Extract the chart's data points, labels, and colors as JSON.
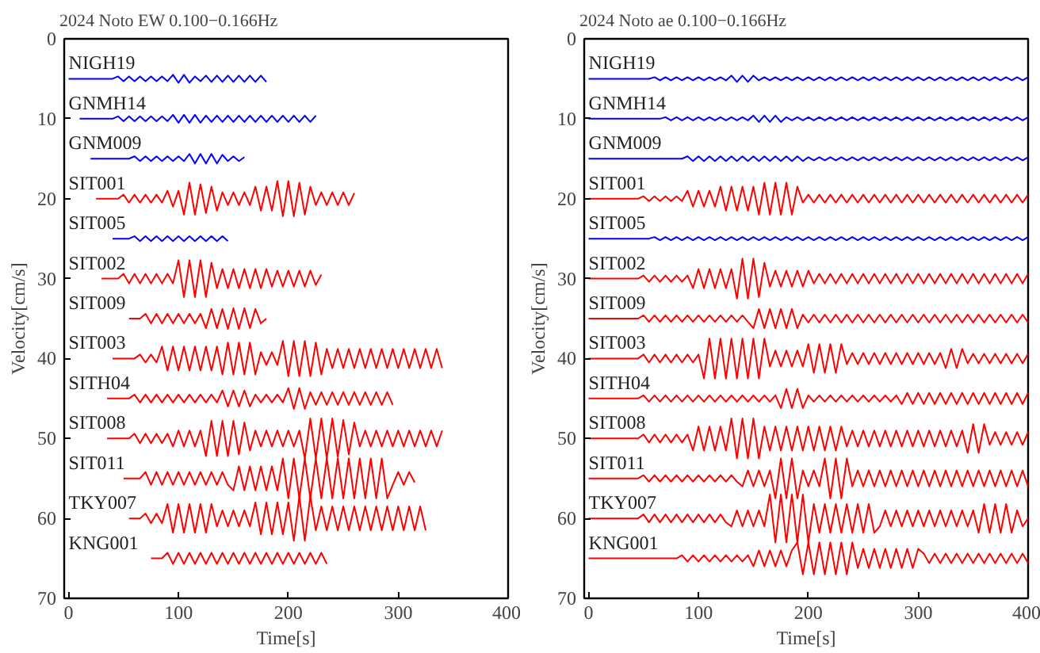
{
  "chart_data": [
    {
      "type": "line",
      "title": "2024 Noto EW 0.100−0.166Hz",
      "xlabel": "Time[s]",
      "ylabel": "Velocity[cm/s]",
      "xlim": [
        -4,
        400
      ],
      "ylim": [
        70,
        0
      ],
      "xticks": [
        0,
        100,
        200,
        300,
        400
      ],
      "yticks": [
        0,
        10,
        20,
        30,
        40,
        50,
        60,
        70
      ],
      "grid": false,
      "legend": false,
      "x": [
        0,
        5,
        10,
        15,
        20,
        25,
        30,
        35,
        40,
        45,
        50,
        55,
        60,
        65,
        70,
        75,
        80,
        85,
        90,
        95,
        100,
        105,
        110,
        115,
        120,
        125,
        130,
        135,
        140,
        145,
        150,
        155,
        160,
        165,
        170,
        175,
        180,
        185,
        190,
        195,
        200,
        205,
        210,
        215,
        220,
        225,
        230,
        235,
        240,
        245,
        250,
        255,
        260,
        265,
        270,
        275,
        280,
        285,
        290,
        295,
        300,
        305,
        310,
        315,
        320,
        325,
        330,
        335,
        340
      ],
      "series": [
        {
          "name": "NIGH19",
          "color": "#0000ff",
          "values": [
            5,
            5,
            5,
            5,
            5,
            5,
            5,
            5,
            5,
            4.7,
            5.3,
            4.7,
            5.3,
            4.7,
            5.3,
            4.7,
            5.3,
            4.7,
            5.3,
            4.5,
            5.5,
            4.5,
            5.5,
            4.7,
            5.3,
            4.6,
            5.4,
            4.6,
            5.4,
            4.6,
            5.4,
            4.6,
            5.4,
            4.6,
            5.4,
            4.6,
            5.4,
            null,
            null,
            null,
            null,
            null,
            null,
            null,
            null,
            null,
            null,
            null,
            null,
            null,
            null,
            null,
            null,
            null,
            null,
            null,
            null,
            null,
            null,
            null,
            null,
            null,
            null,
            null,
            null,
            null,
            null,
            null,
            null
          ]
        },
        {
          "name": "GNMH14",
          "color": "#0000ff",
          "values": [
            null,
            null,
            10,
            10,
            10,
            10,
            10,
            10,
            10,
            9.7,
            10.3,
            9.7,
            10.3,
            9.7,
            10.3,
            9.7,
            10.3,
            9.7,
            10.3,
            9.5,
            10.5,
            9.5,
            10.5,
            9.5,
            10.5,
            9.6,
            10.4,
            9.6,
            10.4,
            9.6,
            10.4,
            9.6,
            10.4,
            9.6,
            10.4,
            9.6,
            10.4,
            9.6,
            10.4,
            9.6,
            10.4,
            9.6,
            10.4,
            9.6,
            10.4,
            9.6,
            null,
            null,
            null,
            null,
            null,
            null,
            null,
            null,
            null,
            null,
            null,
            null,
            null,
            null,
            null,
            null,
            null,
            null,
            null,
            null,
            null,
            null,
            null
          ]
        },
        {
          "name": "GNM009",
          "color": "#0000ff",
          "values": [
            null,
            null,
            null,
            null,
            15,
            15,
            15,
            15,
            15,
            15,
            15,
            15,
            14.7,
            15.3,
            14.7,
            15.3,
            14.7,
            15.3,
            14.7,
            15.3,
            14.7,
            15.3,
            14.4,
            15.6,
            14.4,
            15.6,
            14.4,
            15.6,
            14.5,
            15.3,
            14.7,
            15.3,
            14.8,
            null,
            null,
            null,
            null,
            null,
            null,
            null,
            null,
            null,
            null,
            null,
            null,
            null,
            null,
            null,
            null,
            null,
            null,
            null,
            null,
            null,
            null,
            null,
            null,
            null,
            null,
            null,
            null,
            null,
            null,
            null,
            null,
            null,
            null,
            null,
            null
          ]
        },
        {
          "name": "SIT001",
          "color": "#ff0000",
          "values": [
            null,
            null,
            null,
            null,
            null,
            20,
            20,
            20,
            20,
            20,
            19.5,
            20.5,
            19.5,
            20.5,
            19.5,
            20.5,
            19.5,
            20.5,
            19,
            21,
            19,
            22,
            18,
            22,
            18.2,
            21.8,
            18.5,
            21.5,
            19.2,
            20.8,
            19.2,
            20.8,
            19.2,
            20.8,
            18.5,
            21.5,
            18.5,
            21.5,
            17.8,
            22.2,
            17.8,
            22.2,
            18,
            22,
            18.5,
            20.8,
            19.2,
            20.8,
            19.2,
            20.8,
            19.2,
            20.8,
            19.3,
            null,
            null,
            null,
            null,
            null,
            null,
            null,
            null,
            null,
            null,
            null,
            null,
            null,
            null,
            null,
            null
          ]
        },
        {
          "name": "SIT005",
          "color": "#0000ff",
          "values": [
            null,
            null,
            null,
            null,
            null,
            null,
            null,
            null,
            25,
            25,
            25,
            25,
            24.7,
            25.3,
            24.7,
            25.3,
            24.7,
            25.3,
            24.7,
            25.3,
            24.7,
            25.3,
            24.7,
            25.3,
            24.7,
            25.3,
            24.7,
            25.3,
            24.7,
            25.3,
            null,
            null,
            null,
            null,
            null,
            null,
            null,
            null,
            null,
            null,
            null,
            null,
            null,
            null,
            null,
            null,
            null,
            null,
            null,
            null,
            null,
            null,
            null,
            null,
            null,
            null,
            null,
            null,
            null,
            null,
            null,
            null,
            null,
            null,
            null,
            null,
            null,
            null,
            null
          ]
        },
        {
          "name": "SIT002",
          "color": "#ff0000",
          "values": [
            null,
            null,
            null,
            null,
            null,
            null,
            30,
            30,
            30,
            30,
            29.4,
            30.6,
            29.4,
            30.6,
            29.4,
            30.6,
            29.4,
            30.6,
            29.4,
            30.6,
            27.7,
            32.3,
            27.7,
            32.3,
            27.7,
            32.3,
            28,
            31.2,
            28.8,
            31.2,
            28.8,
            31.2,
            28.8,
            31.2,
            28.8,
            31.2,
            28.8,
            31,
            29,
            31,
            29,
            31,
            29,
            31,
            29,
            30.8,
            29.5,
            null,
            null,
            null,
            null,
            null,
            null,
            null,
            null,
            null,
            null,
            null,
            null,
            null,
            null,
            null,
            null,
            null,
            null,
            null,
            null,
            null,
            null
          ]
        },
        {
          "name": "SIT009",
          "color": "#ff0000",
          "values": [
            null,
            null,
            null,
            null,
            null,
            null,
            null,
            null,
            null,
            null,
            null,
            35,
            35,
            35,
            34.4,
            35.6,
            34.4,
            35.6,
            34.4,
            35.6,
            34.4,
            35.6,
            34.4,
            35.6,
            34.4,
            36.2,
            33.8,
            36.2,
            33.8,
            36.3,
            33.7,
            36.3,
            33.7,
            36.2,
            33.8,
            35.6,
            35,
            null,
            null,
            null,
            null,
            null,
            null,
            null,
            null,
            null,
            null,
            null,
            null,
            null,
            null,
            null,
            null,
            null,
            null,
            null,
            null,
            null,
            null,
            null,
            null,
            null,
            null,
            null,
            null,
            null,
            null,
            null,
            null
          ]
        },
        {
          "name": "SIT003",
          "color": "#ff0000",
          "values": [
            null,
            null,
            null,
            null,
            null,
            null,
            null,
            null,
            40,
            40,
            40,
            40,
            40,
            39.5,
            40.5,
            39.5,
            40.5,
            38.5,
            41.5,
            38.5,
            41.5,
            38.5,
            41.5,
            38.5,
            41.5,
            38.5,
            41.5,
            38.5,
            42,
            38,
            42,
            38,
            42,
            38,
            42,
            39.2,
            40.8,
            39.2,
            40.8,
            37.8,
            42.2,
            37.8,
            42.2,
            37.8,
            42.2,
            38,
            42,
            38.8,
            41.2,
            38.8,
            41.2,
            38.8,
            41.2,
            38.8,
            41.2,
            38.8,
            41.2,
            38.8,
            41.2,
            38.8,
            41.2,
            38.8,
            41.2,
            38.8,
            41.2,
            38.8,
            41.2,
            38.8,
            41.2
          ]
        },
        {
          "name": "SITH04",
          "color": "#ff0000",
          "values": [
            null,
            null,
            null,
            null,
            null,
            null,
            null,
            45,
            45,
            45,
            45,
            45,
            44.5,
            45.5,
            44.5,
            45.5,
            44.5,
            45.5,
            44.5,
            45.5,
            44.5,
            45.5,
            44.5,
            45.5,
            44.5,
            45.5,
            44.5,
            45.5,
            44,
            46,
            44,
            46,
            44,
            46,
            44.5,
            45.5,
            44.5,
            45.5,
            44.5,
            45.5,
            43.7,
            46.3,
            43.7,
            46.3,
            44.2,
            45.8,
            44.2,
            45.8,
            44.2,
            45.8,
            44.2,
            45.8,
            44.2,
            45.8,
            44.2,
            45.8,
            44.2,
            45.8,
            44.2,
            45.8,
            null,
            null,
            null,
            null,
            null,
            null,
            null,
            null,
            null
          ]
        },
        {
          "name": "SIT008",
          "color": "#ff0000",
          "values": [
            null,
            null,
            null,
            null,
            null,
            null,
            null,
            50,
            50,
            50,
            50,
            50,
            49.4,
            50.6,
            49.4,
            50.6,
            49.4,
            50.6,
            49.4,
            51,
            49,
            51,
            49,
            51,
            49,
            52.2,
            47.8,
            52.2,
            47.8,
            52.2,
            47.8,
            52,
            48,
            51.5,
            49,
            51,
            49,
            51,
            49,
            51,
            49,
            51,
            49,
            52.5,
            47.5,
            52.5,
            47.5,
            52.5,
            47.5,
            52.3,
            47.7,
            52,
            48,
            51,
            49,
            51,
            49,
            51,
            49,
            51,
            49,
            51,
            49,
            51,
            49,
            51,
            49,
            51,
            49
          ]
        },
        {
          "name": "SIT011",
          "color": "#ff0000",
          "values": [
            null,
            null,
            null,
            null,
            null,
            null,
            null,
            null,
            null,
            null,
            55,
            55,
            55,
            55,
            54.2,
            55.8,
            54.2,
            55.8,
            54.2,
            55.8,
            54.2,
            55.8,
            54.2,
            55.8,
            54.2,
            55.8,
            54.2,
            55.8,
            54.2,
            55.8,
            56.5,
            53.5,
            56.5,
            53.5,
            56.5,
            53.5,
            56.5,
            53.5,
            56.5,
            52.5,
            57.5,
            52.5,
            57.5,
            52.5,
            57.5,
            52.5,
            57.5,
            52.5,
            57.5,
            52.5,
            57.5,
            52.5,
            57.5,
            52.5,
            57.5,
            52.5,
            57.5,
            52.5,
            57.5,
            55.8,
            54.2,
            55.8,
            54.2,
            55.5,
            null,
            null,
            null,
            null,
            null
          ]
        },
        {
          "name": "TKY007",
          "color": "#ff0000",
          "values": [
            null,
            null,
            null,
            null,
            null,
            null,
            null,
            null,
            null,
            null,
            null,
            60,
            60,
            60,
            59.4,
            60.6,
            59.4,
            60.6,
            58.2,
            61.8,
            58.2,
            61.8,
            58.2,
            61.8,
            58.2,
            61.8,
            58.2,
            61,
            59,
            61,
            59,
            61,
            59,
            61,
            58,
            62,
            58,
            62,
            58,
            62,
            58,
            62.8,
            57.2,
            62.8,
            57.2,
            61.5,
            58.5,
            61.5,
            58.5,
            61.5,
            58.5,
            61.5,
            58.5,
            61.5,
            58.5,
            61.5,
            58.5,
            61.5,
            58.5,
            61.5,
            58.5,
            61.5,
            58.5,
            61.5,
            58.5,
            61.5,
            null,
            null,
            null
          ]
        },
        {
          "name": "KNG001",
          "color": "#ff0000",
          "values": [
            null,
            null,
            null,
            null,
            null,
            null,
            null,
            null,
            null,
            null,
            null,
            null,
            null,
            null,
            null,
            65,
            65,
            65,
            64.3,
            65.7,
            64.3,
            65.7,
            64.3,
            65.7,
            64.3,
            65.7,
            64.3,
            65.7,
            64.3,
            65.7,
            64.3,
            65.7,
            64.3,
            65.7,
            64.3,
            65.7,
            64.3,
            65.7,
            64.3,
            65.7,
            64.3,
            65.7,
            64.3,
            65.7,
            64.3,
            65.7,
            64.3,
            65.7,
            null,
            null,
            null,
            null,
            null,
            null,
            null,
            null,
            null,
            null,
            null,
            null,
            null,
            null,
            null,
            null,
            null,
            null,
            null,
            null,
            null
          ]
        }
      ]
    },
    {
      "type": "line",
      "title": "2024 Noto ae 0.100−0.166Hz",
      "xlabel": "Time[s]",
      "ylabel": "Velocity[cm/s]",
      "xlim": [
        -4,
        400
      ],
      "ylim": [
        70,
        0
      ],
      "xticks": [
        0,
        100,
        200,
        300,
        400
      ],
      "yticks": [
        0,
        10,
        20,
        30,
        40,
        50,
        60,
        70
      ],
      "grid": false,
      "legend": false,
      "x": [
        0,
        5,
        10,
        15,
        20,
        25,
        30,
        35,
        40,
        45,
        50,
        55,
        60,
        65,
        70,
        75,
        80,
        85,
        90,
        95,
        100,
        105,
        110,
        115,
        120,
        125,
        130,
        135,
        140,
        145,
        150,
        155,
        160,
        165,
        170,
        175,
        180,
        185,
        190,
        195,
        200,
        205,
        210,
        215,
        220,
        225,
        230,
        235,
        240,
        245,
        250,
        255,
        260,
        265,
        270,
        275,
        280,
        285,
        290,
        295,
        300,
        305,
        310,
        315,
        320,
        325,
        330,
        335,
        340,
        345,
        350,
        355,
        360,
        365,
        370,
        375,
        380,
        385,
        390,
        395,
        400
      ],
      "series": [
        {
          "name": "NIGH19",
          "color": "#0000ff",
          "values": [
            5,
            5,
            5,
            5,
            5,
            5,
            5,
            5,
            5,
            5,
            5,
            5,
            4.8,
            5.2,
            4.8,
            5.2,
            4.8,
            5.2,
            4.8,
            5.2,
            4.8,
            5.2,
            4.8,
            5.2,
            4.8,
            5.2,
            4.6,
            5.4,
            4.6,
            5.4,
            4.6,
            5.2,
            4.8,
            5.2,
            4.8,
            5.2,
            4.8,
            5.2,
            4.8,
            5.2,
            4.8,
            5.2,
            4.8,
            5.2,
            4.8,
            5.2,
            4.8,
            5.2,
            4.8,
            5.2,
            4.8,
            5.2,
            4.8,
            5.2,
            4.8,
            5.2,
            4.8,
            5.2,
            4.8,
            5.2,
            4.8,
            5.2,
            4.8,
            5.2,
            4.8,
            5.2,
            4.8,
            5.2,
            4.8,
            5.2,
            4.8,
            5.2,
            4.8,
            5.2,
            4.8,
            5.2,
            4.8,
            5.2,
            4.8,
            5.2,
            4.8
          ]
        },
        {
          "name": "GNMH14",
          "color": "#0000ff",
          "values": [
            10,
            10,
            10,
            10,
            10,
            10,
            10,
            10,
            10,
            10,
            10,
            10,
            10,
            10,
            9.8,
            10.2,
            9.8,
            10.2,
            9.8,
            10.2,
            9.8,
            10.2,
            9.8,
            10.2,
            9.8,
            10.2,
            9.8,
            10.2,
            9.8,
            10.2,
            9.6,
            10.4,
            9.6,
            10.4,
            9.6,
            10.4,
            9.8,
            10.2,
            9.8,
            10.2,
            9.8,
            10.2,
            9.8,
            10.2,
            9.8,
            10.2,
            9.8,
            10.2,
            9.8,
            10.2,
            9.8,
            10.2,
            9.8,
            10.2,
            9.8,
            10.2,
            9.8,
            10.2,
            9.8,
            10.2,
            9.8,
            10.2,
            9.8,
            10.2,
            9.8,
            10.2,
            9.8,
            10.2,
            9.8,
            10.2,
            9.8,
            10.2,
            9.8,
            10.2,
            9.8,
            10.2,
            9.8,
            10.2,
            9.8,
            10.2,
            9.8
          ]
        },
        {
          "name": "GNM009",
          "color": "#0000ff",
          "values": [
            15,
            15,
            15,
            15,
            15,
            15,
            15,
            15,
            15,
            15,
            15,
            15,
            15,
            15,
            15,
            15,
            15,
            15,
            14.7,
            15.3,
            14.7,
            15.3,
            14.7,
            15.3,
            14.7,
            15.3,
            14.7,
            15.3,
            14.7,
            15.3,
            14.7,
            15.3,
            14.7,
            15.3,
            14.7,
            15.3,
            14.7,
            15.3,
            14.7,
            15.3,
            14.8,
            15.2,
            14.8,
            15.2,
            14.8,
            15.2,
            14.8,
            15.2,
            14.8,
            15.2,
            14.8,
            15.2,
            14.8,
            15.2,
            14.8,
            15.2,
            14.8,
            15.2,
            14.8,
            15.2,
            14.8,
            15.2,
            14.8,
            15.2,
            14.8,
            15.2,
            14.8,
            15.2,
            14.8,
            15.2,
            14.8,
            15.2,
            14.8,
            15.2,
            14.8,
            15.2,
            14.8,
            15.2,
            14.8,
            15.2,
            14.8
          ]
        },
        {
          "name": "SIT001",
          "color": "#ff0000",
          "values": [
            20,
            20,
            20,
            20,
            20,
            20,
            20,
            20,
            20,
            20,
            19.7,
            20.3,
            19.7,
            20.3,
            19.7,
            20.3,
            19.7,
            20.3,
            19,
            21,
            19,
            21,
            19,
            21,
            18.5,
            21.5,
            18.5,
            21.5,
            18.5,
            21.5,
            18.5,
            22,
            18,
            22,
            18,
            22,
            18,
            22,
            18.5,
            20.5,
            19.5,
            20.5,
            19.5,
            20.5,
            19.5,
            20.5,
            19.5,
            20.5,
            19.5,
            20.5,
            19.5,
            20.5,
            19.5,
            20.5,
            19.5,
            20.5,
            19.5,
            20.5,
            19.5,
            20.5,
            19.5,
            20.5,
            19.5,
            20.5,
            19.5,
            20.5,
            19.5,
            20.5,
            19.5,
            20.5,
            19.5,
            20.5,
            19.5,
            20.5,
            19.5,
            20.5,
            19.5,
            20.5,
            19.5,
            20.5,
            19.5
          ]
        },
        {
          "name": "SIT005",
          "color": "#0000ff",
          "values": [
            25,
            25,
            25,
            25,
            25,
            25,
            25,
            25,
            25,
            25,
            25,
            25,
            24.8,
            25.2,
            24.8,
            25.2,
            24.8,
            25.2,
            24.8,
            25.2,
            24.8,
            25.2,
            24.8,
            25.2,
            24.8,
            25.2,
            24.8,
            25.2,
            24.8,
            25.2,
            24.8,
            25.2,
            24.8,
            25.2,
            24.8,
            25.2,
            24.8,
            25.2,
            24.8,
            25.2,
            24.8,
            25.2,
            24.8,
            25.2,
            24.8,
            25.2,
            24.8,
            25.2,
            24.8,
            25.2,
            24.8,
            25.2,
            24.8,
            25.2,
            24.8,
            25.2,
            24.8,
            25.2,
            24.8,
            25.2,
            24.8,
            25.2,
            24.8,
            25.2,
            24.8,
            25.2,
            24.8,
            25.2,
            24.8,
            25.2,
            24.8,
            25.2,
            24.8,
            25.2,
            24.8,
            25.2,
            24.8,
            25.2,
            24.8,
            25.2,
            24.8
          ]
        },
        {
          "name": "SIT002",
          "color": "#ff0000",
          "values": [
            30,
            30,
            30,
            30,
            30,
            30,
            30,
            30,
            30,
            30,
            29.6,
            30.4,
            29.6,
            30.4,
            29.6,
            30.4,
            29.6,
            30.4,
            29.6,
            31.2,
            28.8,
            31.2,
            28.8,
            31.2,
            28.8,
            31.2,
            28.8,
            32.5,
            27.5,
            32.5,
            27.5,
            32.3,
            28,
            31,
            29,
            31,
            29,
            31,
            29,
            31,
            29,
            30.6,
            29.4,
            30.6,
            29.4,
            30.6,
            29.4,
            30.6,
            29.4,
            30.6,
            29.4,
            30.6,
            29.4,
            30.6,
            29.4,
            30.6,
            29.4,
            30.6,
            29.4,
            30.6,
            29.4,
            30.6,
            29.4,
            30.6,
            29.4,
            30.6,
            29.4,
            30.6,
            29.4,
            30.6,
            29.4,
            30.6,
            29.4,
            30.6,
            29.4,
            30.6,
            29.4,
            30.6,
            29.4,
            30.6,
            29.4
          ]
        },
        {
          "name": "SIT009",
          "color": "#ff0000",
          "values": [
            35,
            35,
            35,
            35,
            35,
            35,
            35,
            35,
            35,
            35,
            34.6,
            35.4,
            34.6,
            35.4,
            34.6,
            35.4,
            34.6,
            35.4,
            34.6,
            35.4,
            34.6,
            35.4,
            34.6,
            35.4,
            34.6,
            35.4,
            34.6,
            35.4,
            34.6,
            35.4,
            36.2,
            33.8,
            36.2,
            33.8,
            36.2,
            33.8,
            36.2,
            33.8,
            36.2,
            34.5,
            35.5,
            34.5,
            35.5,
            34.5,
            35.5,
            34.5,
            35.5,
            34.5,
            35.5,
            34.5,
            35.5,
            34.5,
            35.5,
            34.5,
            35.5,
            34.5,
            35.5,
            34.5,
            35.5,
            34.5,
            35.5,
            34.5,
            35.5,
            34.5,
            35.5,
            34.5,
            35.5,
            34.5,
            35.5,
            34.5,
            35.5,
            34.5,
            35.5,
            34.5,
            35.5,
            34.5,
            35.5,
            34.5,
            35.5,
            34.5,
            35.5
          ]
        },
        {
          "name": "SIT003",
          "color": "#ff0000",
          "values": [
            40,
            40,
            40,
            40,
            40,
            40,
            40,
            40,
            40,
            40,
            39.5,
            40.5,
            39.5,
            40.5,
            39.5,
            40.5,
            39.5,
            40.5,
            39.5,
            40.5,
            39.5,
            42.5,
            37.5,
            42.5,
            37.5,
            42.5,
            37.5,
            42.5,
            37.5,
            42.5,
            37.5,
            42.5,
            37.5,
            41,
            39,
            41,
            39,
            41,
            39,
            41,
            38.2,
            41.8,
            38.2,
            41.8,
            38.2,
            41.8,
            38.2,
            40.7,
            39.3,
            40.7,
            39.3,
            40.7,
            39.3,
            40.7,
            39.3,
            40.7,
            39.3,
            40.7,
            39.3,
            40.7,
            39.3,
            40.7,
            39.3,
            40.7,
            39.3,
            41.2,
            38.8,
            41.2,
            38.8,
            40.6,
            39.4,
            40.6,
            39.4,
            40.6,
            39.4,
            40.6,
            39.4,
            40.6,
            39.4,
            40.6,
            39.4
          ]
        },
        {
          "name": "SITH04",
          "color": "#ff0000",
          "values": [
            45,
            45,
            45,
            45,
            45,
            45,
            45,
            45,
            45,
            45,
            44.6,
            45.4,
            44.6,
            45.4,
            44.6,
            45.4,
            44.6,
            45.4,
            44.6,
            45.4,
            44.6,
            45.4,
            44.6,
            45.4,
            44.6,
            45.4,
            44.6,
            45.4,
            44.6,
            45.4,
            44.6,
            45.4,
            44.6,
            45.4,
            44.6,
            46.2,
            43.8,
            46.2,
            43.8,
            46.2,
            44.6,
            45.4,
            44.6,
            45.4,
            44.6,
            45.4,
            44.6,
            45.4,
            44.6,
            45.4,
            44.6,
            45.4,
            44.6,
            45.4,
            44.6,
            45.4,
            44.6,
            45.7,
            44.3,
            45.7,
            44.3,
            45.7,
            44.3,
            45.7,
            44.3,
            45.7,
            44.3,
            45.7,
            44.3,
            45.7,
            44.3,
            45.7,
            44.3,
            45.7,
            44.3,
            45.7,
            44.3,
            45.7,
            44.3,
            45.7,
            44.3
          ]
        },
        {
          "name": "SIT008",
          "color": "#ff0000",
          "values": [
            50,
            50,
            50,
            50,
            50,
            50,
            50,
            50,
            50,
            50,
            49.5,
            50.5,
            49.5,
            50.5,
            49.5,
            50.5,
            49.5,
            50.5,
            49.5,
            51.5,
            48.5,
            51.5,
            48.5,
            51.5,
            48.5,
            51.5,
            47.5,
            52.5,
            47.5,
            52.5,
            47.5,
            52.5,
            48.5,
            51.5,
            48.5,
            51.5,
            48.5,
            51.5,
            48.5,
            51.5,
            48.5,
            51.5,
            48.5,
            51.5,
            48.5,
            51.5,
            48.5,
            51,
            49,
            51,
            49,
            51,
            49,
            51,
            49,
            51,
            49,
            51,
            49,
            51,
            49,
            51,
            49,
            51,
            49,
            51,
            49,
            51,
            49,
            51.8,
            48.2,
            51.8,
            48.2,
            50.8,
            49.2,
            50.8,
            49.2,
            50.8,
            49.2,
            50.8,
            49.2
          ]
        },
        {
          "name": "SIT011",
          "color": "#ff0000",
          "values": [
            55,
            55,
            55,
            55,
            55,
            55,
            55,
            55,
            55,
            55,
            54.6,
            55.4,
            54.6,
            55.4,
            54.6,
            55.4,
            54.6,
            55.4,
            54.6,
            55.4,
            54.6,
            55.4,
            54.6,
            55.4,
            54.6,
            55.4,
            54.6,
            55.4,
            56,
            54,
            56,
            54,
            56,
            54,
            57.5,
            52.5,
            57.5,
            52.5,
            57.5,
            54,
            56,
            54,
            56,
            52.5,
            57.5,
            52.5,
            57.5,
            52.5,
            56,
            54,
            56,
            54,
            56,
            54,
            56,
            54,
            56,
            54,
            56,
            54,
            56,
            54,
            56,
            54,
            56,
            54,
            56,
            54,
            56,
            54,
            56,
            54,
            56,
            54,
            56,
            54,
            56,
            54,
            56,
            54,
            56
          ]
        },
        {
          "name": "TKY007",
          "color": "#ff0000",
          "values": [
            60,
            60,
            60,
            60,
            60,
            60,
            60,
            60,
            60,
            60,
            59.5,
            60.5,
            59.5,
            60.5,
            59.5,
            60.5,
            59.5,
            60.5,
            59.5,
            60.5,
            59.5,
            60.5,
            59.5,
            60.5,
            59.5,
            60.5,
            61,
            59,
            61,
            59,
            61,
            59,
            61,
            57,
            63,
            57,
            63,
            57,
            63,
            57,
            63,
            58.2,
            61.8,
            58.2,
            61.8,
            58.2,
            61.8,
            58.2,
            61.8,
            58.2,
            61.8,
            58.2,
            61.8,
            61,
            59,
            61,
            59,
            61,
            59,
            61,
            59,
            61,
            59,
            61,
            59,
            61,
            59,
            61,
            59,
            61,
            59,
            61.8,
            58.2,
            61.8,
            58.2,
            61.8,
            58.2,
            61.8,
            59,
            61,
            60
          ]
        },
        {
          "name": "KNG001",
          "color": "#ff0000",
          "values": [
            65,
            65,
            65,
            65,
            65,
            65,
            65,
            65,
            65,
            65,
            65,
            65,
            65,
            65,
            65,
            65,
            65,
            64.6,
            65.4,
            64.6,
            65.4,
            64.6,
            65.4,
            64.6,
            65.4,
            64.6,
            65.4,
            64.6,
            65.4,
            64.6,
            66,
            64,
            66,
            64,
            66,
            64,
            66,
            64,
            63,
            67,
            63,
            67,
            63,
            67,
            63,
            67,
            63,
            67,
            63,
            66.2,
            63.8,
            66.2,
            63.8,
            66.2,
            63.8,
            66.2,
            63.8,
            66.2,
            63.8,
            66.2,
            63.8,
            64.4,
            65.6,
            64.4,
            65.6,
            64.4,
            65.6,
            64.4,
            65.6,
            64.4,
            65.6,
            64.4,
            65.6,
            64.4,
            65.6,
            64.4,
            65.6,
            64.4,
            65.6,
            64.4,
            65.6
          ]
        }
      ]
    }
  ]
}
